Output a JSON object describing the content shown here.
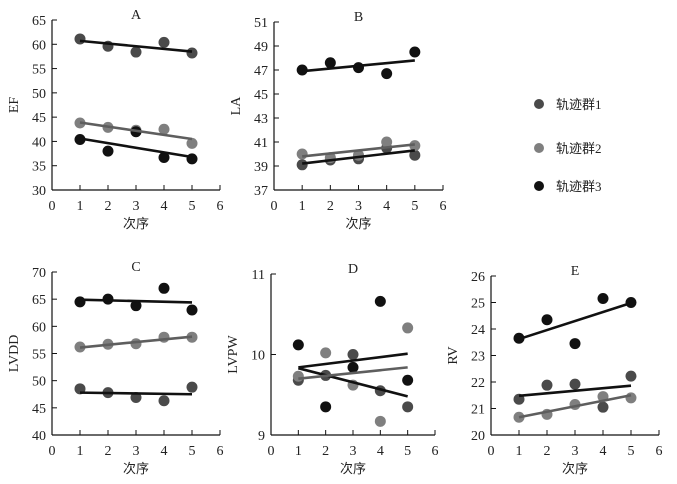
{
  "legend": {
    "placement": "right",
    "items": [
      {
        "label": "轨迹群1",
        "color": "#4a4a4a"
      },
      {
        "label": "轨迹群2",
        "color": "#7f7f7f"
      },
      {
        "label": "轨迹群3",
        "color": "#111111"
      }
    ]
  },
  "colors": {
    "group1": "#4a4a4a",
    "group2": "#7f7f7f",
    "group3": "#111111",
    "trend_dark": "#111111",
    "trend_gray": "#5e5e5e"
  },
  "chart_data": [
    {
      "type": "scatter",
      "title": "A",
      "xlabel": "次序",
      "ylabel": "EF",
      "xlim": [
        0,
        6
      ],
      "ylim": [
        30,
        65
      ],
      "xticks": [
        "0",
        "1",
        "2",
        "3",
        "4",
        "5",
        "6"
      ],
      "yticks": [
        "30",
        "35",
        "40",
        "45",
        "50",
        "55",
        "60",
        "65"
      ],
      "x": [
        1,
        2,
        3,
        4,
        5
      ],
      "series": [
        {
          "name": "轨迹群1",
          "values": [
            61.1,
            59.6,
            58.4,
            60.4,
            58.2
          ],
          "trend": [
            60.7,
            58.5
          ],
          "trend_color": "dark"
        },
        {
          "name": "轨迹群2",
          "values": [
            43.8,
            42.9,
            42.3,
            42.5,
            39.6
          ],
          "trend": [
            43.9,
            40.5
          ],
          "trend_color": "gray"
        },
        {
          "name": "轨迹群3",
          "values": [
            40.4,
            38.0,
            42.0,
            36.7,
            36.4
          ],
          "trend": [
            40.6,
            36.8
          ],
          "trend_color": "dark"
        }
      ]
    },
    {
      "type": "scatter",
      "title": "B",
      "xlabel": "次序",
      "ylabel": "LA",
      "xlim": [
        0,
        6
      ],
      "ylim": [
        37,
        51
      ],
      "xticks": [
        "0",
        "1",
        "2",
        "3",
        "4",
        "5",
        "6"
      ],
      "yticks": [
        "37",
        "39",
        "41",
        "43",
        "45",
        "47",
        "49",
        "51"
      ],
      "x": [
        1,
        2,
        3,
        4,
        5
      ],
      "series": [
        {
          "name": "轨迹群1",
          "values": [
            39.1,
            39.5,
            39.6,
            40.5,
            39.9
          ],
          "trend": [
            39.2,
            40.3
          ],
          "trend_color": "dark"
        },
        {
          "name": "轨迹群2",
          "values": [
            40.0,
            39.7,
            39.9,
            41.0,
            40.7
          ],
          "trend": [
            39.8,
            40.8
          ],
          "trend_color": "gray"
        },
        {
          "name": "轨迹群3",
          "values": [
            47.0,
            47.6,
            47.2,
            46.7,
            48.5
          ],
          "trend": [
            46.9,
            47.8
          ],
          "trend_color": "dark"
        }
      ]
    },
    {
      "type": "scatter",
      "title": "C",
      "xlabel": "次序",
      "ylabel": "LVDD",
      "xlim": [
        0,
        6
      ],
      "ylim": [
        40,
        70
      ],
      "xticks": [
        "0",
        "1",
        "2",
        "3",
        "4",
        "5",
        "6"
      ],
      "yticks": [
        "40",
        "45",
        "50",
        "55",
        "60",
        "65",
        "70"
      ],
      "x": [
        1,
        2,
        3,
        4,
        5
      ],
      "series": [
        {
          "name": "轨迹群1",
          "values": [
            48.5,
            47.8,
            46.9,
            46.3,
            48.8
          ],
          "trend": [
            47.8,
            47.5
          ],
          "trend_color": "dark"
        },
        {
          "name": "轨迹群2",
          "values": [
            56.2,
            56.7,
            56.8,
            58.0,
            58.0
          ],
          "trend": [
            56.1,
            58.1
          ],
          "trend_color": "gray"
        },
        {
          "name": "轨迹群3",
          "values": [
            64.5,
            65.0,
            63.8,
            67.0,
            63.0
          ],
          "trend": [
            64.9,
            64.4
          ],
          "trend_color": "dark"
        }
      ]
    },
    {
      "type": "scatter",
      "title": "D",
      "xlabel": "次序",
      "ylabel": "LVPW",
      "xlim": [
        0,
        6
      ],
      "ylim": [
        9,
        11
      ],
      "xticks": [
        "0",
        "1",
        "2",
        "3",
        "4",
        "5",
        "6"
      ],
      "yticks": [
        "9",
        "10",
        "11"
      ],
      "x": [
        1,
        2,
        3,
        4,
        5
      ],
      "series": [
        {
          "name": "轨迹群1",
          "values": [
            9.68,
            9.74,
            10.0,
            9.55,
            9.35
          ],
          "trend": [
            9.83,
            9.48
          ],
          "trend_color": "dark"
        },
        {
          "name": "轨迹群2",
          "values": [
            9.73,
            10.02,
            9.62,
            9.17,
            10.33
          ],
          "trend": [
            9.7,
            9.84
          ],
          "trend_color": "gray"
        },
        {
          "name": "轨迹群3",
          "values": [
            10.12,
            9.35,
            9.84,
            10.66,
            9.68
          ],
          "trend": [
            9.84,
            10.01
          ],
          "trend_color": "dark"
        }
      ]
    },
    {
      "type": "scatter",
      "title": "E",
      "xlabel": "次序",
      "ylabel": "RV",
      "xlim": [
        0,
        6
      ],
      "ylim": [
        20,
        26
      ],
      "xticks": [
        "0",
        "1",
        "2",
        "3",
        "4",
        "5",
        "6"
      ],
      "yticks": [
        "20",
        "21",
        "22",
        "23",
        "24",
        "25",
        "26"
      ],
      "x": [
        1,
        2,
        3,
        4,
        5
      ],
      "series": [
        {
          "name": "轨迹群1",
          "values": [
            21.35,
            21.88,
            21.92,
            21.05,
            22.22
          ],
          "trend": [
            21.48,
            21.86
          ],
          "trend_color": "dark"
        },
        {
          "name": "轨迹群2",
          "values": [
            20.67,
            20.78,
            21.15,
            21.45,
            21.4
          ],
          "trend": [
            20.67,
            21.5
          ],
          "trend_color": "gray"
        },
        {
          "name": "轨迹群3",
          "values": [
            23.65,
            24.35,
            23.45,
            25.15,
            25.0
          ],
          "trend": [
            23.62,
            24.98
          ],
          "trend_color": "dark"
        }
      ]
    }
  ]
}
